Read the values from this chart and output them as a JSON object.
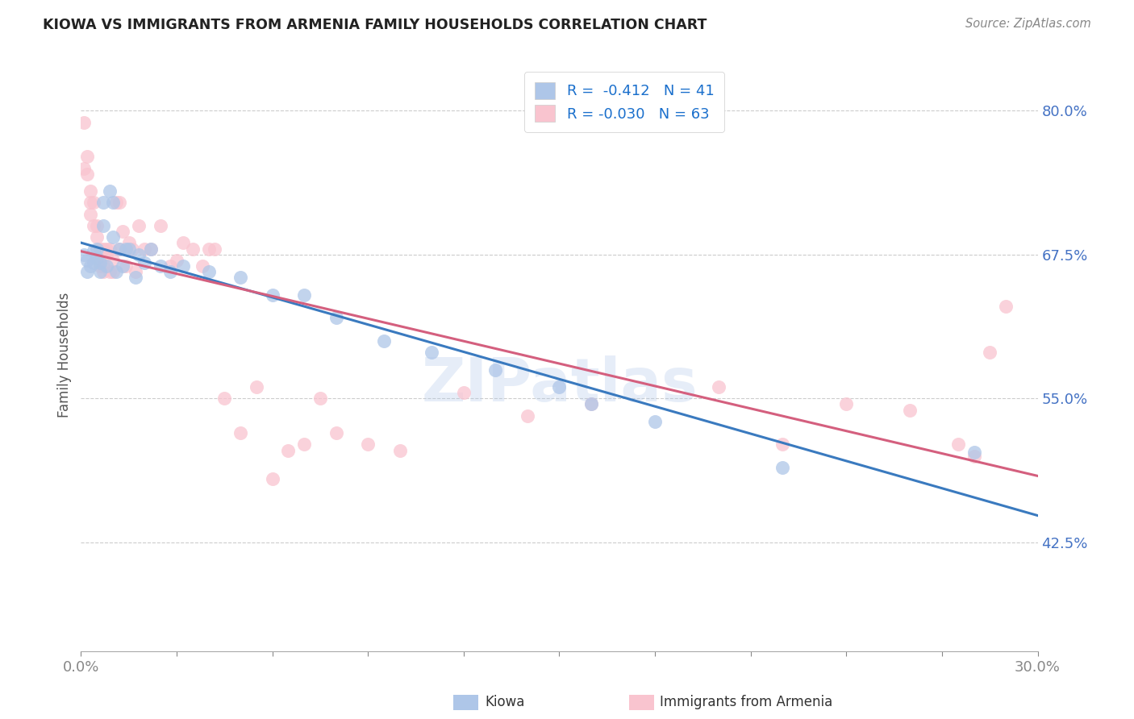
{
  "title": "KIOWA VS IMMIGRANTS FROM ARMENIA FAMILY HOUSEHOLDS CORRELATION CHART",
  "source": "Source: ZipAtlas.com",
  "ylabel": "Family Households",
  "ytick_labels": [
    "80.0%",
    "67.5%",
    "55.0%",
    "42.5%"
  ],
  "ytick_values": [
    0.8,
    0.675,
    0.55,
    0.425
  ],
  "legend_color1": "#aec6e8",
  "legend_color2": "#f9c4cf",
  "scatter_color_blue": "#aec6e8",
  "scatter_color_pink": "#f9c4cf",
  "line_color_blue": "#3a7abf",
  "line_color_pink": "#d45f7e",
  "watermark": "ZIPatlas",
  "background_color": "#ffffff",
  "kiowa_x": [
    0.001,
    0.002,
    0.002,
    0.003,
    0.004,
    0.004,
    0.005,
    0.005,
    0.006,
    0.006,
    0.007,
    0.007,
    0.008,
    0.009,
    0.01,
    0.01,
    0.011,
    0.012,
    0.013,
    0.014,
    0.015,
    0.017,
    0.018,
    0.02,
    0.022,
    0.025,
    0.028,
    0.032,
    0.04,
    0.05,
    0.06,
    0.07,
    0.08,
    0.095,
    0.11,
    0.13,
    0.15,
    0.16,
    0.18,
    0.22,
    0.28
  ],
  "kiowa_y": [
    0.675,
    0.67,
    0.66,
    0.665,
    0.678,
    0.668,
    0.68,
    0.672,
    0.668,
    0.66,
    0.72,
    0.7,
    0.665,
    0.73,
    0.69,
    0.72,
    0.66,
    0.68,
    0.665,
    0.68,
    0.68,
    0.655,
    0.675,
    0.668,
    0.68,
    0.665,
    0.66,
    0.665,
    0.66,
    0.655,
    0.64,
    0.64,
    0.62,
    0.6,
    0.59,
    0.575,
    0.56,
    0.545,
    0.53,
    0.49,
    0.503
  ],
  "armenia_x": [
    0.001,
    0.001,
    0.002,
    0.002,
    0.003,
    0.003,
    0.003,
    0.004,
    0.004,
    0.005,
    0.005,
    0.006,
    0.006,
    0.006,
    0.007,
    0.007,
    0.007,
    0.008,
    0.008,
    0.009,
    0.009,
    0.01,
    0.01,
    0.011,
    0.012,
    0.012,
    0.013,
    0.014,
    0.015,
    0.016,
    0.017,
    0.018,
    0.02,
    0.022,
    0.025,
    0.028,
    0.03,
    0.032,
    0.035,
    0.038,
    0.04,
    0.042,
    0.045,
    0.05,
    0.055,
    0.06,
    0.065,
    0.07,
    0.075,
    0.08,
    0.09,
    0.1,
    0.12,
    0.14,
    0.16,
    0.2,
    0.22,
    0.24,
    0.26,
    0.275,
    0.28,
    0.285,
    0.29
  ],
  "armenia_y": [
    0.79,
    0.75,
    0.76,
    0.745,
    0.72,
    0.71,
    0.73,
    0.72,
    0.7,
    0.69,
    0.7,
    0.68,
    0.67,
    0.665,
    0.68,
    0.665,
    0.66,
    0.68,
    0.675,
    0.68,
    0.66,
    0.67,
    0.66,
    0.72,
    0.72,
    0.68,
    0.695,
    0.665,
    0.685,
    0.68,
    0.66,
    0.7,
    0.68,
    0.68,
    0.7,
    0.665,
    0.67,
    0.685,
    0.68,
    0.665,
    0.68,
    0.68,
    0.55,
    0.52,
    0.56,
    0.48,
    0.505,
    0.51,
    0.55,
    0.52,
    0.51,
    0.505,
    0.555,
    0.535,
    0.545,
    0.56,
    0.51,
    0.545,
    0.54,
    0.51,
    0.5,
    0.59,
    0.63
  ]
}
